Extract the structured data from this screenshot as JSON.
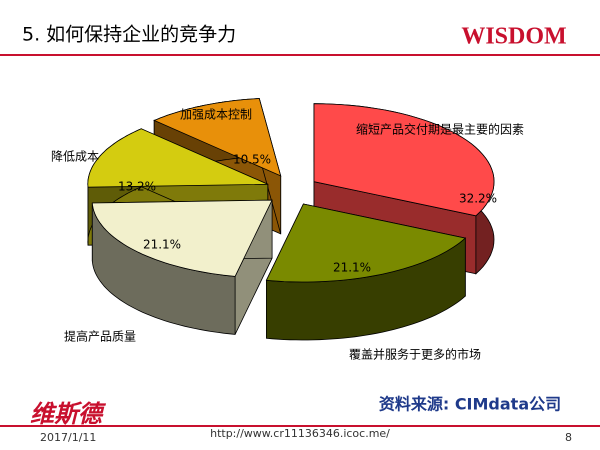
{
  "slide": {
    "title": "5.  如何保持企业的竞争力",
    "logo": "WISDOM",
    "source": "资料来源: CIMdata公司",
    "brand": "维斯德",
    "date": "2017/1/11",
    "url": "http://www.cr11136346.icoc.me/",
    "page": "8"
  },
  "chart_data": {
    "type": "pie",
    "categories": [
      "缩短产品交付期是最主要的因素",
      "覆盖并服务于更多的市场",
      "提高产品质量",
      "降低成本",
      "加强成本控制"
    ],
    "values": [
      32.2,
      21.1,
      21.1,
      13.2,
      10.5
    ],
    "value_labels": [
      "32.2%",
      "21.1%",
      "21.1%",
      "13.2%",
      "10.5%"
    ],
    "colors": [
      "#ff4a4a",
      "#7a8a00",
      "#f2f0cc",
      "#d4cc10",
      "#e8900a"
    ]
  }
}
